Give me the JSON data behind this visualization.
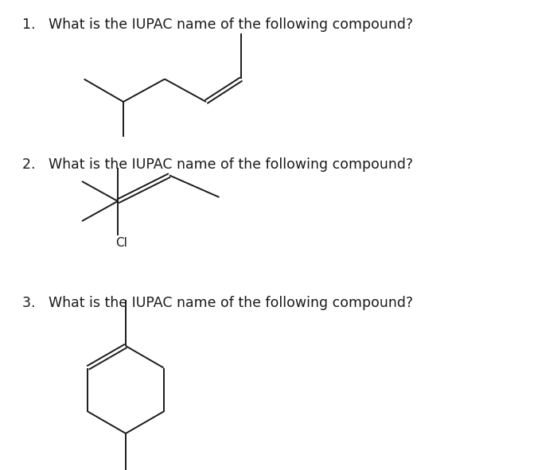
{
  "background_color": "#ffffff",
  "text_color": "#1a1a1a",
  "line_color": "#1a1a1a",
  "line_width": 1.4,
  "questions": [
    "1.   What is the IUPAC name of the following compound?",
    "2.   What is the IUPAC name of the following compound?",
    "3.   What is the IUPAC name of the following compound?"
  ],
  "question_fontsize": 12.5,
  "font_family": "DejaVu Sans"
}
